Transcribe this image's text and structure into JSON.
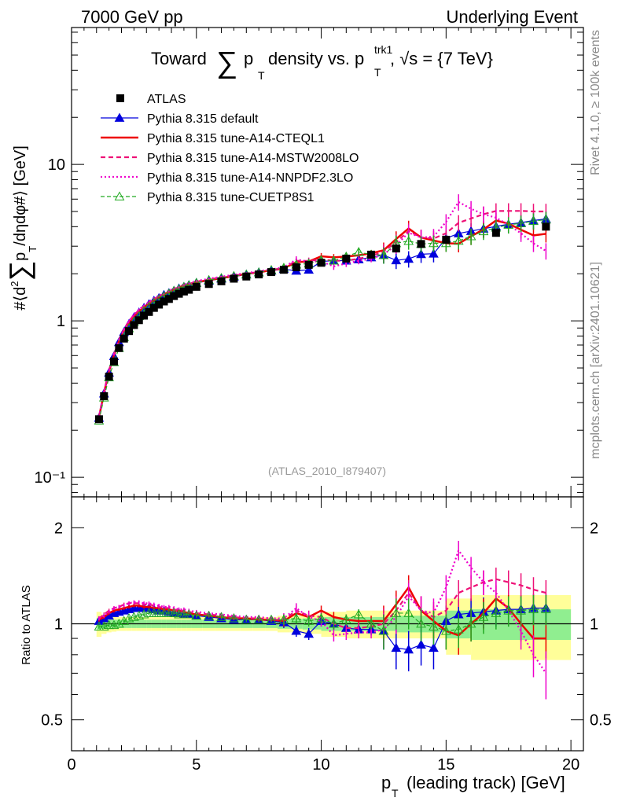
{
  "header": {
    "left": "7000 GeV pp",
    "right": "Underlying Event",
    "title_prefix": "Toward",
    "title_mid": "p",
    "title_sub": "T",
    "title_after": "density vs. p",
    "title_sup2": "trk1",
    "title_sub2": "T",
    "title_tail": ", √s = {7 TeV}",
    "analysis_id": "(ATLAS_2010_I879407)",
    "side_right_top": "Rivet 4.1.0, ≥ 100k events",
    "side_right_bottom": "mcplots.cern.ch [arXiv:2401.10621]"
  },
  "axes": {
    "ylabel_main": "#⟨d² ∑ p /dηdφ#⟩ [GeV]",
    "ylabel_main_parts": {
      "a": "#⟨d",
      "b": "2",
      "c": "∑",
      "d": "p",
      "e": "T",
      "f": "/dηdφ#⟩ [GeV]"
    },
    "ylabel_ratio": "Ratio to ATLAS",
    "xlabel_main": "p",
    "xlabel_sub": "T",
    "xlabel_tail": "(leading track) [GeV]",
    "x_ticks": [
      "0",
      "5",
      "10",
      "15",
      "20"
    ],
    "y_ticks_main": [
      "10⁻¹",
      "1",
      "10"
    ],
    "y_ticks_ratio": [
      "0.5",
      "1",
      "2"
    ]
  },
  "colors": {
    "atlas": "#000000",
    "default": "#0000dd",
    "cteql1": "#ee0000",
    "mstw": "#ee1177",
    "nnpdf": "#ee00cc",
    "cuetp": "#22aa22",
    "band_green": "#90ee90",
    "band_yellow": "#fffe99"
  },
  "chart_data": {
    "type": "line",
    "title": "Toward ∑pT density vs. pT trk1, √s = {7 TeV}",
    "xlabel": "pT (leading track) [GeV]",
    "ylabel": "#⟨d² ∑ pT /dηdφ#⟩ [GeV]",
    "xlim": [
      0,
      20.5
    ],
    "ylim": [
      0.075,
      75
    ],
    "yscale": "log",
    "ratio_ylim": [
      0.4,
      2.5
    ],
    "ratio_ylabel": "Ratio to ATLAS",
    "x": [
      1.1,
      1.3,
      1.5,
      1.7,
      1.9,
      2.1,
      2.3,
      2.5,
      2.7,
      2.9,
      3.1,
      3.3,
      3.5,
      3.7,
      3.9,
      4.1,
      4.3,
      4.5,
      4.7,
      5.0,
      5.5,
      6.0,
      6.5,
      7.0,
      7.5,
      8.0,
      8.5,
      9.0,
      9.5,
      10.0,
      10.5,
      11.0,
      11.5,
      12.0,
      12.5,
      13.0,
      13.5,
      14.0,
      14.5,
      15.0,
      15.5,
      16.0,
      16.5,
      17.0,
      17.5,
      18.0,
      18.5,
      19.0
    ],
    "legend": [
      "ATLAS",
      "Pythia 8.315 default",
      "Pythia 8.315 tune-A14-CTEQL1",
      "Pythia 8.315 tune-A14-MSTW2008LO",
      "Pythia 8.315 tune-A14-NNPDF2.3LO",
      "Pythia 8.315 tune-CUETP8S1"
    ],
    "legend_placement": "top-left",
    "data": {
      "name": "ATLAS",
      "points": [
        {
          "x": 1.1,
          "y": 0.235
        },
        {
          "x": 1.3,
          "y": 0.33
        },
        {
          "x": 1.5,
          "y": 0.44
        },
        {
          "x": 1.7,
          "y": 0.55
        },
        {
          "x": 1.9,
          "y": 0.67
        },
        {
          "x": 2.1,
          "y": 0.77
        },
        {
          "x": 2.3,
          "y": 0.86
        },
        {
          "x": 2.5,
          "y": 0.94
        },
        {
          "x": 2.7,
          "y": 1.01
        },
        {
          "x": 2.9,
          "y": 1.08
        },
        {
          "x": 3.1,
          "y": 1.14
        },
        {
          "x": 3.3,
          "y": 1.21
        },
        {
          "x": 3.5,
          "y": 1.27
        },
        {
          "x": 3.7,
          "y": 1.33
        },
        {
          "x": 3.9,
          "y": 1.38
        },
        {
          "x": 4.1,
          "y": 1.44
        },
        {
          "x": 4.3,
          "y": 1.49
        },
        {
          "x": 4.5,
          "y": 1.54
        },
        {
          "x": 4.7,
          "y": 1.58
        },
        {
          "x": 5.0,
          "y": 1.65
        },
        {
          "x": 5.5,
          "y": 1.72
        },
        {
          "x": 6.0,
          "y": 1.79
        },
        {
          "x": 6.5,
          "y": 1.86
        },
        {
          "x": 7.0,
          "y": 1.92
        },
        {
          "x": 7.5,
          "y": 1.98
        },
        {
          "x": 8.0,
          "y": 2.05
        },
        {
          "x": 8.5,
          "y": 2.12
        },
        {
          "x": 9.0,
          "y": 2.2
        },
        {
          "x": 9.5,
          "y": 2.28
        },
        {
          "x": 10.0,
          "y": 2.35
        },
        {
          "x": 11.0,
          "y": 2.5
        },
        {
          "x": 12.0,
          "y": 2.65
        },
        {
          "x": 13.0,
          "y": 2.9
        },
        {
          "x": 14.0,
          "y": 3.1
        },
        {
          "x": 15.0,
          "y": 3.3
        },
        {
          "x": 17.0,
          "y": 3.65
        },
        {
          "x": 19.0,
          "y": 4.0
        }
      ]
    },
    "series": [
      {
        "name": "Pythia 8.315 default",
        "style": "solid-triangle",
        "ratio": [
          1.02,
          1.04,
          1.06,
          1.08,
          1.09,
          1.1,
          1.11,
          1.12,
          1.12,
          1.12,
          1.12,
          1.11,
          1.1,
          1.1,
          1.09,
          1.08,
          1.08,
          1.07,
          1.07,
          1.06,
          1.05,
          1.04,
          1.03,
          1.03,
          1.03,
          1.02,
          1.01,
          0.95,
          0.93,
          1.02,
          1.0,
          0.97,
          0.96,
          0.96,
          0.95,
          0.84,
          0.83,
          0.86,
          0.84,
          1.02,
          1.07,
          1.08,
          1.09,
          1.1,
          1.11,
          1.11,
          1.12,
          1.12
        ]
      },
      {
        "name": "Pythia 8.315 tune-A14-CTEQL1",
        "style": "solid-thick",
        "ratio": [
          1.03,
          1.05,
          1.08,
          1.1,
          1.11,
          1.12,
          1.13,
          1.14,
          1.14,
          1.13,
          1.13,
          1.12,
          1.12,
          1.11,
          1.11,
          1.1,
          1.1,
          1.09,
          1.08,
          1.07,
          1.06,
          1.05,
          1.04,
          1.04,
          1.03,
          1.03,
          1.02,
          1.08,
          1.05,
          1.1,
          1.05,
          1.03,
          1.02,
          1.02,
          1.02,
          1.15,
          1.3,
          1.1,
          1.02,
          0.95,
          0.92,
          1.0,
          1.08,
          1.2,
          1.12,
          1.0,
          0.9,
          0.9
        ]
      },
      {
        "name": "Pythia 8.315 tune-A14-MSTW2008LO",
        "style": "dashed",
        "ratio": [
          1.04,
          1.07,
          1.1,
          1.12,
          1.13,
          1.15,
          1.16,
          1.16,
          1.16,
          1.15,
          1.15,
          1.14,
          1.13,
          1.12,
          1.12,
          1.11,
          1.1,
          1.1,
          1.09,
          1.08,
          1.07,
          1.06,
          1.05,
          1.04,
          1.04,
          1.03,
          1.03,
          1.1,
          1.06,
          1.05,
          1.0,
          0.97,
          0.97,
          0.98,
          1.0,
          1.1,
          1.25,
          1.1,
          1.05,
          1.1,
          1.25,
          1.3,
          1.35,
          1.38,
          1.35,
          1.32,
          1.28,
          1.25
        ]
      },
      {
        "name": "Pythia 8.315 tune-A14-NNPDF2.3LO",
        "style": "dotted",
        "ratio": [
          1.04,
          1.06,
          1.09,
          1.12,
          1.13,
          1.14,
          1.16,
          1.17,
          1.17,
          1.16,
          1.16,
          1.15,
          1.14,
          1.13,
          1.13,
          1.12,
          1.11,
          1.11,
          1.1,
          1.09,
          1.08,
          1.07,
          1.06,
          1.05,
          1.05,
          1.04,
          1.04,
          1.12,
          1.05,
          1.02,
          0.92,
          0.93,
          0.94,
          0.94,
          0.96,
          1.05,
          1.22,
          1.1,
          1.08,
          1.3,
          1.7,
          1.5,
          1.35,
          1.25,
          1.1,
          0.95,
          0.8,
          0.7
        ]
      },
      {
        "name": "Pythia 8.315 tune-CUETP8S1",
        "style": "dashed-open-triangle",
        "ratio": [
          0.98,
          0.98,
          0.99,
          0.99,
          1.0,
          1.02,
          1.04,
          1.05,
          1.06,
          1.07,
          1.08,
          1.08,
          1.08,
          1.08,
          1.08,
          1.08,
          1.07,
          1.07,
          1.07,
          1.06,
          1.06,
          1.05,
          1.04,
          1.03,
          1.03,
          1.03,
          1.03,
          1.04,
          1.02,
          1.04,
          1.0,
          1.03,
          1.07,
          1.0,
          0.95,
          1.08,
          1.08,
          1.0,
          0.98,
          0.95,
          0.96,
          1.0,
          1.05,
          1.08,
          1.1,
          1.1,
          1.11,
          1.11
        ]
      }
    ]
  }
}
